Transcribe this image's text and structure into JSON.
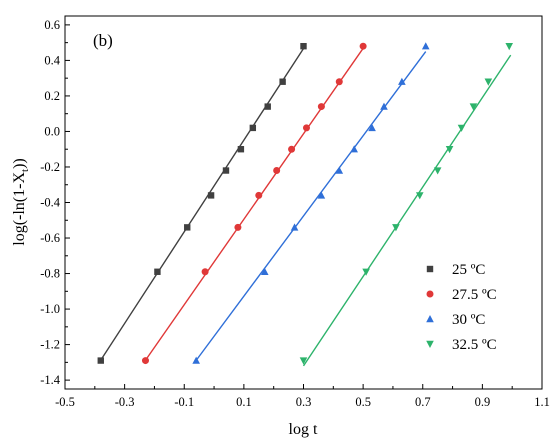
{
  "chart_data": {
    "type": "scatter",
    "panel_label": "(b)",
    "xlabel": "log t",
    "ylabel_main": "log(-ln(1-X",
    "ylabel_sub": "t",
    "ylabel_end": "))",
    "xlim": [
      -0.5,
      1.1
    ],
    "ylim": [
      -1.45,
      0.65
    ],
    "xticks": [
      -0.5,
      -0.3,
      -0.1,
      0.1,
      0.3,
      0.5,
      0.7,
      0.9,
      1.1
    ],
    "xtick_labels": [
      "-0.5",
      "-0.3",
      "-0.1",
      "0.1",
      "0.3",
      "0.5",
      "0.7",
      "0.9",
      "1.1"
    ],
    "yticks": [
      0.6,
      0.4,
      0.2,
      0.0,
      -0.2,
      -0.4,
      -0.6,
      -0.8,
      -1.0,
      -1.2,
      -1.4
    ],
    "ytick_labels": [
      "0.6",
      "0.4",
      "0.2",
      "0.0",
      "-0.2",
      "-0.4",
      "-0.6",
      "-0.8",
      "-1.0",
      "-1.2",
      "-1.4"
    ],
    "legend_position": "bottom-right",
    "grid": false,
    "series": [
      {
        "name": "25 ºC",
        "color": "#404040",
        "marker": "square",
        "x": [
          -0.38,
          -0.19,
          -0.09,
          -0.01,
          0.04,
          0.09,
          0.13,
          0.18,
          0.23,
          0.3
        ],
        "y": [
          -1.29,
          -0.79,
          -0.54,
          -0.36,
          -0.22,
          -0.1,
          0.02,
          0.14,
          0.28,
          0.48
        ],
        "fit": [
          [
            -0.385,
            -1.3
          ],
          [
            0.305,
            0.48
          ]
        ]
      },
      {
        "name": "27.5 ºC",
        "color": "#e03838",
        "marker": "circle",
        "x": [
          -0.23,
          -0.03,
          0.08,
          0.15,
          0.21,
          0.26,
          0.31,
          0.36,
          0.42,
          0.5
        ],
        "y": [
          -1.29,
          -0.79,
          -0.54,
          -0.36,
          -0.22,
          -0.1,
          0.02,
          0.14,
          0.28,
          0.48
        ],
        "fit": [
          [
            -0.235,
            -1.3
          ],
          [
            0.505,
            0.48
          ]
        ]
      },
      {
        "name": "30 ºC",
        "color": "#2f6fd8",
        "marker": "triangle-up",
        "x": [
          -0.06,
          0.17,
          0.27,
          0.36,
          0.42,
          0.47,
          0.53,
          0.57,
          0.63,
          0.71
        ],
        "y": [
          -1.29,
          -0.79,
          -0.54,
          -0.36,
          -0.22,
          -0.1,
          0.02,
          0.14,
          0.28,
          0.48
        ],
        "fit": [
          [
            -0.065,
            -1.3
          ],
          [
            0.71,
            0.45
          ]
        ]
      },
      {
        "name": "32.5 ºC",
        "color": "#2db36b",
        "marker": "triangle-down",
        "x": [
          0.3,
          0.51,
          0.61,
          0.69,
          0.75,
          0.79,
          0.83,
          0.87,
          0.92,
          0.99
        ],
        "y": [
          -1.29,
          -0.79,
          -0.54,
          -0.36,
          -0.22,
          -0.1,
          0.02,
          0.14,
          0.28,
          0.48
        ],
        "fit": [
          [
            0.3,
            -1.32
          ],
          [
            0.995,
            0.43
          ]
        ]
      }
    ]
  }
}
